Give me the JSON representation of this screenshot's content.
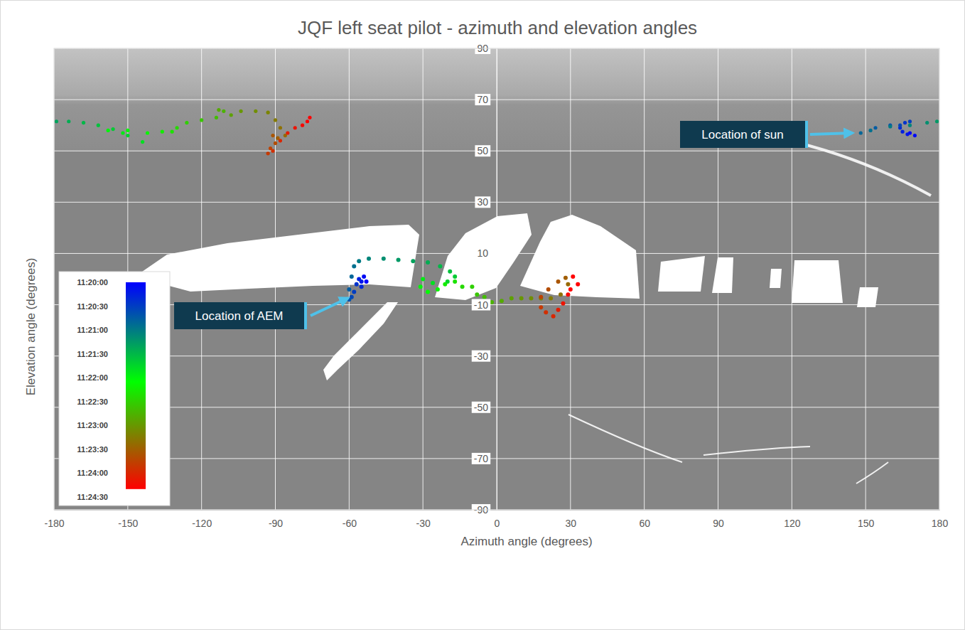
{
  "chart_data": {
    "type": "scatter",
    "title": "JQF left seat pilot - azimuth and elevation angles",
    "x_label": "Azimuth angle (degrees)",
    "y_label": "Elevation angle (degrees)",
    "xlim": [
      -180,
      180
    ],
    "ylim": [
      -90,
      90
    ],
    "xticks": [
      -180,
      -150,
      -120,
      -90,
      -60,
      -30,
      0,
      30,
      60,
      90,
      120,
      150,
      180
    ],
    "yticks": [
      -90,
      -70,
      -50,
      -30,
      -10,
      10,
      30,
      50,
      70,
      90
    ],
    "grid": true,
    "annotations": [
      {
        "text": "Location of sun"
      },
      {
        "text": "Location of AEM"
      }
    ],
    "colorbar": {
      "range": [
        40800,
        41070
      ],
      "ticks": [
        {
          "value": 40800,
          "label": "11:20:00"
        },
        {
          "value": 40830,
          "label": "11:20:30"
        },
        {
          "value": 40860,
          "label": "11:21:00"
        },
        {
          "value": 40890,
          "label": "11:21:30"
        },
        {
          "value": 40920,
          "label": "11:22:00"
        },
        {
          "value": 40950,
          "label": "11:22:30"
        },
        {
          "value": 40980,
          "label": "11:23:00"
        },
        {
          "value": 41010,
          "label": "11:23:30"
        },
        {
          "value": 41040,
          "label": "11:24:00"
        },
        {
          "value": 41070,
          "label": "11:24:30"
        }
      ],
      "color_stops": [
        40800,
        40925,
        41060
      ],
      "colors": [
        "#0000ff",
        "#00ff00",
        "#ff0000"
      ]
    },
    "series": [
      {
        "marker": "circle",
        "x": [
          -53,
          -54,
          -55,
          -56,
          -55,
          -57,
          -58,
          -59,
          -60,
          -60,
          -59,
          -58,
          -56,
          -52,
          -46,
          -40,
          -34,
          -28,
          -23,
          -19,
          -17,
          -20,
          -26,
          -30,
          -31,
          -28,
          -24,
          -21,
          -17,
          -14,
          -10,
          -8,
          -5,
          -2,
          2,
          6,
          10,
          14,
          18,
          22,
          26,
          29,
          28,
          25,
          21,
          18,
          18,
          20,
          23,
          25,
          27,
          29,
          31,
          33,
          30
        ],
        "values": [
          -1,
          1,
          -1,
          0,
          -3,
          -2,
          -5,
          -7,
          -8,
          -4,
          1,
          5,
          7,
          8,
          8,
          7.5,
          7,
          6.5,
          5,
          3,
          1,
          -1,
          -1.5,
          0,
          -3,
          -5,
          -4,
          -2,
          -1,
          -3,
          -3,
          -6,
          -7,
          -9,
          -8.5,
          -7.5,
          -7.5,
          -7.5,
          -7.5,
          -7.5,
          -6,
          -2,
          0.5,
          -1,
          -4,
          -7,
          -11,
          -13,
          -14.5,
          -12,
          -9.5,
          -6,
          1,
          -2,
          -4
        ],
        "t": [
          40800,
          40805,
          40810,
          40815,
          40820,
          40825,
          40830,
          40835,
          40840,
          40845,
          40850,
          40855,
          40860,
          40865,
          40870,
          40875,
          40880,
          40885,
          40890,
          40895,
          40900,
          40905,
          40910,
          40915,
          40920,
          40925,
          40930,
          40935,
          40940,
          40945,
          40950,
          40955,
          40960,
          40965,
          40970,
          40975,
          40980,
          40985,
          40990,
          40995,
          41000,
          41005,
          41010,
          41015,
          41020,
          41025,
          41030,
          41035,
          41040,
          41045,
          41050,
          41055,
          41060,
          41065,
          41070
        ]
      },
      {
        "marker": "circle",
        "x": [
          168,
          170,
          167,
          165,
          164,
          166,
          168,
          164,
          160,
          154,
          148,
          152,
          160,
          168,
          175,
          179,
          -179,
          -174,
          -168,
          -162,
          -156,
          -150,
          -144,
          -152,
          -158,
          -150,
          -142,
          -136,
          -132,
          -130,
          -126,
          -120,
          -114,
          -111,
          -113,
          -108,
          -104,
          -98,
          -93,
          -90,
          -88,
          -86,
          -89,
          -91,
          -90,
          -92,
          -93,
          -91,
          -88,
          -85,
          -82,
          -79,
          -77,
          -76
        ],
        "values": [
          57,
          56,
          56.5,
          57.5,
          59,
          61,
          61.5,
          60,
          60,
          59,
          57,
          58,
          59.5,
          60,
          61,
          61.5,
          61.5,
          61.5,
          61,
          60,
          58.5,
          56,
          53.5,
          57,
          58,
          58,
          57,
          57.5,
          57.5,
          59,
          61,
          62,
          63,
          65.5,
          66,
          64,
          65.5,
          65.5,
          65,
          62,
          59,
          56,
          55,
          56,
          53,
          51,
          49,
          50,
          54,
          57,
          59,
          60,
          61.5,
          63
        ],
        "t": [
          40800,
          40805,
          40810,
          40815,
          40820,
          40825,
          40830,
          40835,
          40840,
          40845,
          40850,
          40855,
          40860,
          40865,
          40870,
          40875,
          40880,
          40885,
          40890,
          40895,
          40900,
          40905,
          40910,
          40915,
          40920,
          40925,
          40930,
          40935,
          40940,
          40945,
          40950,
          40955,
          40960,
          40965,
          40970,
          40975,
          40980,
          40985,
          40990,
          40995,
          41000,
          41005,
          41010,
          41015,
          41020,
          41025,
          41030,
          41035,
          41040,
          41045,
          41050,
          41055,
          41060,
          41065
        ]
      }
    ]
  }
}
